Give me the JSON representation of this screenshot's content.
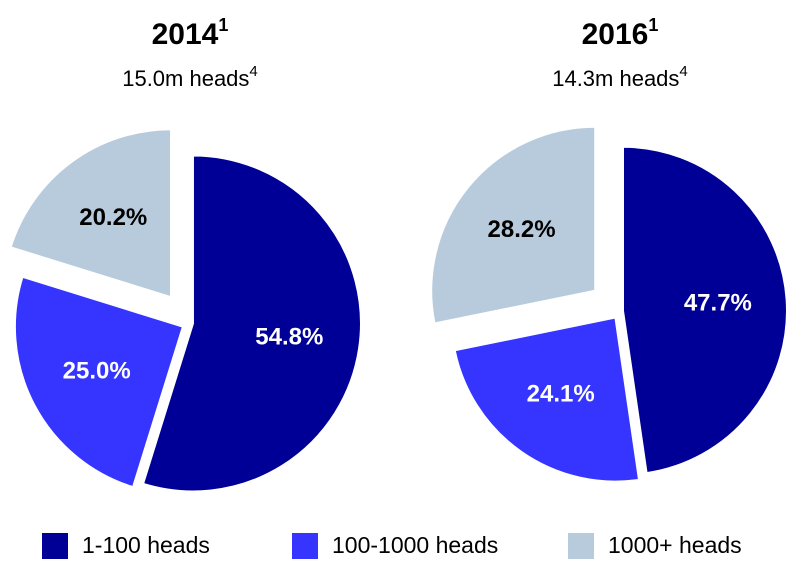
{
  "chart_data": [
    {
      "type": "pie",
      "title": "2014",
      "title_note": "1",
      "subtitle": "15.0m heads",
      "subtitle_note": "4",
      "categories": [
        "1-100 heads",
        "100-1000 heads",
        "1000+ heads"
      ],
      "values": [
        54.8,
        25.0,
        20.2
      ],
      "value_labels": [
        "54.8%",
        "25.0%",
        "20.2%"
      ],
      "colors": [
        "#000096",
        "#3535ff",
        "#b8cbdd"
      ]
    },
    {
      "type": "pie",
      "title": "2016",
      "title_note": "1",
      "subtitle": "14.3m heads",
      "subtitle_note": "4",
      "categories": [
        "1-100 heads",
        "100-1000 heads",
        "1000+ heads"
      ],
      "values": [
        47.7,
        24.1,
        28.2
      ],
      "value_labels": [
        "47.7%",
        "24.1%",
        "28.2%"
      ],
      "colors": [
        "#000096",
        "#3535ff",
        "#b8cbdd"
      ]
    }
  ]
}
